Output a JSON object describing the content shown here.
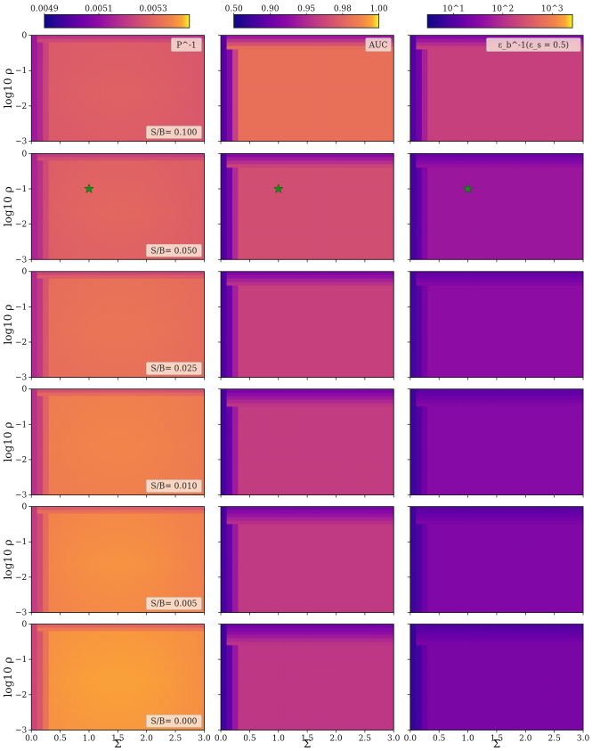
{
  "figure": {
    "column_labels": [
      "P^-1",
      "AUC",
      "ε_b^-1(ε_s = 0.5)"
    ],
    "row_labels": [
      "S/B= 0.100",
      "S/B= 0.050",
      "S/B= 0.025",
      "S/B= 0.010",
      "S/B= 0.005",
      "S/B= 0.000"
    ],
    "xlabel": "Σ",
    "ylabel": "log10 ρ",
    "colorbars": [
      {
        "ticks": [
          "0.0049",
          "0.0051",
          "0.0053"
        ],
        "tick_fraction": [
          0.0,
          0.375,
          0.75
        ],
        "scale": "linear"
      },
      {
        "ticks": [
          "0.50",
          "0.90",
          "0.95",
          "0.98",
          "1.00"
        ],
        "tick_fraction": [
          0.0,
          0.25,
          0.5,
          0.75,
          1.0
        ],
        "scale": "nonlinear"
      },
      {
        "ticks": [
          "10^1",
          "10^2",
          "10^3"
        ],
        "tick_fraction": [
          0.18,
          0.52,
          0.86
        ],
        "scale": "log"
      }
    ],
    "colormap": "plasma",
    "star_marker": {
      "row": 1,
      "sigma": 1.0,
      "log10_rho": -1.0,
      "color": "#1a8a1a"
    }
  },
  "chart_data": {
    "type": "heatmap",
    "x_range": [
      0.0,
      3.0
    ],
    "y_range": [
      -3.0,
      0.0
    ],
    "xticks": [
      "0.0",
      "0.5",
      "1.0",
      "1.5",
      "2.0",
      "2.5",
      "3.0"
    ],
    "yticks": [
      "0",
      "−1",
      "−2",
      "−3"
    ],
    "xtick_values": [
      0.0,
      0.5,
      1.0,
      1.5,
      2.0,
      2.5,
      3.0
    ],
    "ytick_values": [
      0,
      -1,
      -2,
      -3
    ],
    "grid_cells": [
      30,
      30
    ],
    "sb_values": [
      0.1,
      0.05,
      0.025,
      0.01,
      0.005,
      0.0
    ],
    "interior_level": {
      "P^-1": [
        0.7,
        0.72,
        0.78,
        0.84,
        0.87,
        0.9
      ],
      "AUC": [
        0.8,
        0.66,
        0.6,
        0.58,
        0.57,
        0.56
      ],
      "ε_b^-1(ε_s = 0.5)": [
        0.6,
        0.42,
        0.37,
        0.35,
        0.33,
        0.31
      ]
    },
    "low_region_level": {
      "P^-1": [
        0.4,
        0.45,
        0.47,
        0.5,
        0.55,
        0.6
      ],
      "AUC": [
        0.14,
        0.12,
        0.12,
        0.1,
        0.1,
        0.08
      ],
      "ε_b^-1(ε_s = 0.5)": [
        0.14,
        0.12,
        0.12,
        0.1,
        0.1,
        0.08
      ]
    }
  }
}
